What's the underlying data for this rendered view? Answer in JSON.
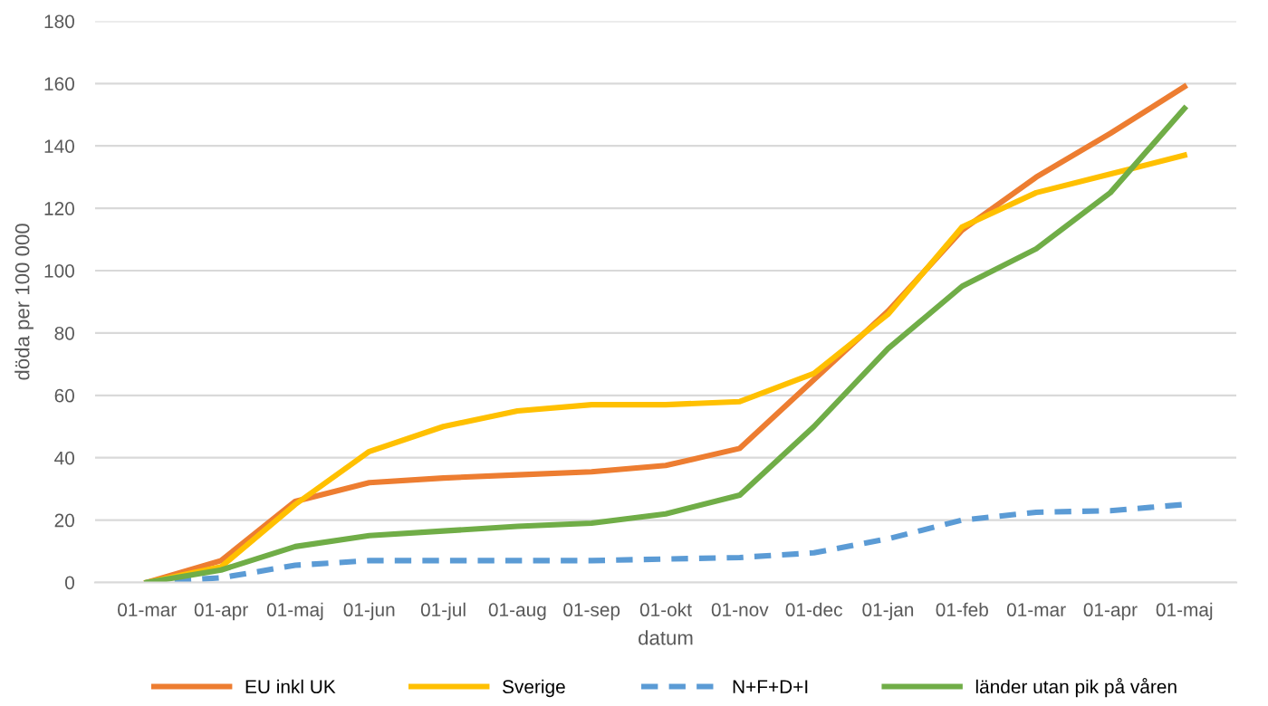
{
  "chart_data": {
    "type": "line",
    "xlabel": "datum",
    "ylabel": "döda per 100 000",
    "categories": [
      "01-mar",
      "01-apr",
      "01-maj",
      "01-jun",
      "01-jul",
      "01-aug",
      "01-sep",
      "01-okt",
      "01-nov",
      "01-dec",
      "01-jan",
      "01-feb",
      "01-mar",
      "01-apr",
      "01-maj"
    ],
    "series": [
      {
        "name": "EU inkl UK",
        "color": "#ed7d31",
        "values": [
          0,
          7,
          26,
          32,
          33.5,
          34.5,
          35.5,
          37.5,
          43,
          65,
          87,
          113,
          130,
          144,
          159
        ]
      },
      {
        "name": "Sverige",
        "color": "#ffc000",
        "values": [
          0,
          5,
          25,
          42,
          50,
          55,
          57,
          57,
          58,
          67,
          86,
          114,
          125,
          131,
          137
        ]
      },
      {
        "name": "N+F+D+I",
        "color": "#5b9bd5",
        "line_style": "dashed",
        "values": [
          0,
          1.5,
          5.5,
          7,
          7,
          7,
          7,
          7.5,
          8,
          9.5,
          14,
          20,
          22.5,
          23,
          25
        ]
      },
      {
        "name": "länder utan pik på våren",
        "color": "#70ad47",
        "values": [
          0,
          4,
          11.5,
          15,
          16.5,
          18,
          19,
          22,
          28,
          50,
          75,
          95,
          107,
          125,
          152
        ]
      }
    ],
    "ylim": [
      0,
      180
    ],
    "yticks": [
      0,
      20,
      40,
      60,
      80,
      100,
      120,
      140,
      160,
      180
    ],
    "grid": "y",
    "legend": "bottom",
    "marker": "none"
  }
}
